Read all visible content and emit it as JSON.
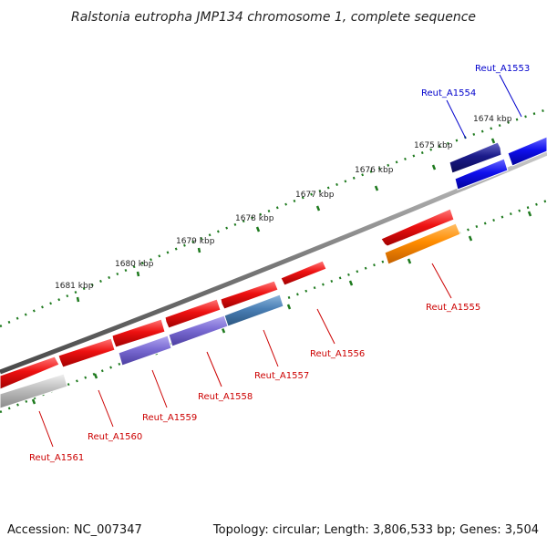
{
  "title": "Ralstonia eutropha JMP134 chromosome 1, complete sequence",
  "tick_labels": [
    "1681 kbp",
    "1680 kbp",
    "1679 kbp",
    "1678 kbp",
    "1677 kbp",
    "1676 kbp",
    "1675 kbp",
    "1674 kbp"
  ],
  "genes": [
    {
      "label": "Reut_A1553",
      "color": "#0000cc"
    },
    {
      "label": "Reut_A1554",
      "color": "#0000cc"
    },
    {
      "label": "Reut_A1555",
      "color": "#cc0000"
    },
    {
      "label": "Reut_A1556",
      "color": "#cc0000"
    },
    {
      "label": "Reut_A1557",
      "color": "#cc0000"
    },
    {
      "label": "Reut_A1558",
      "color": "#cc0000"
    },
    {
      "label": "Reut_A1559",
      "color": "#cc0000"
    },
    {
      "label": "Reut_A1560",
      "color": "#cc0000"
    },
    {
      "label": "Reut_A1561",
      "color": "#cc0000"
    }
  ],
  "feature_colors": {
    "cds": "#e81010",
    "blue": "#1a1aee",
    "orange": "#ff8c00",
    "purple": "#7b6cd4",
    "steelblue": "#4a7fb5",
    "grey": "#b8b8b8",
    "navy": "#1b1b8a",
    "backbone": "#7a7a7a",
    "tick": "#1e7a1e"
  },
  "footer": {
    "accession": "Accession: NC_007347",
    "summary": "Topology: circular; Length: 3,806,533 bp; Genes: 3,504"
  }
}
